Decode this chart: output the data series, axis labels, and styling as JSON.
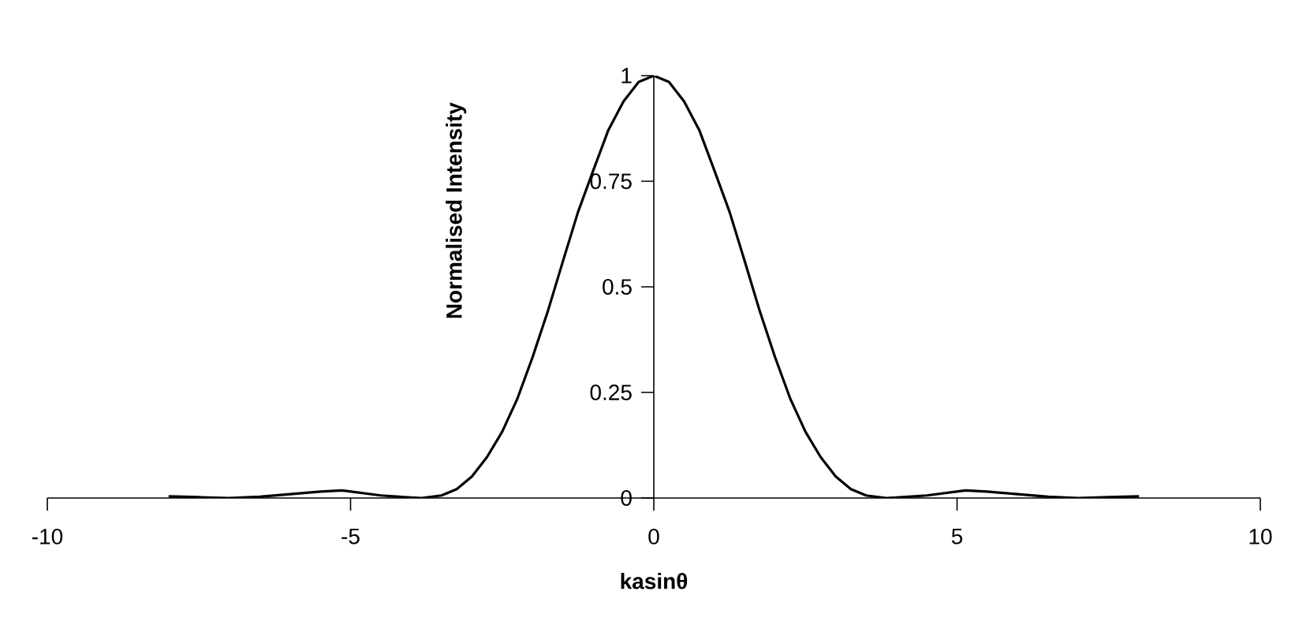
{
  "chart_data": {
    "type": "line",
    "xlabel": "kasinθ",
    "ylabel": "Normalised Intensity",
    "x": [
      -8,
      -7.5,
      -7,
      -6.5,
      -6,
      -5.5,
      -5.14,
      -4.5,
      -4,
      -3.83,
      -3.5,
      -3.25,
      -3,
      -2.75,
      -2.5,
      -2.25,
      -2,
      -1.75,
      -1.5,
      -1.25,
      -1,
      -0.75,
      -0.5,
      -0.25,
      0,
      0.25,
      0.5,
      0.75,
      1,
      1.25,
      1.5,
      1.75,
      2,
      2.25,
      2.5,
      2.75,
      3,
      3.25,
      3.5,
      3.83,
      4,
      4.5,
      5.14,
      5.5,
      6,
      6.5,
      7,
      7.5,
      8
    ],
    "series": [
      {
        "color": "#000000",
        "values": [
          0.004,
          0.002,
          0.0,
          0.003,
          0.009,
          0.015,
          0.018,
          0.006,
          0.001,
          0.0,
          0.006,
          0.021,
          0.051,
          0.097,
          0.157,
          0.235,
          0.333,
          0.441,
          0.56,
          0.677,
          0.775,
          0.871,
          0.939,
          0.985,
          1,
          0.985,
          0.939,
          0.871,
          0.775,
          0.677,
          0.56,
          0.441,
          0.333,
          0.235,
          0.157,
          0.097,
          0.051,
          0.021,
          0.006,
          0.0,
          0.001,
          0.006,
          0.018,
          0.015,
          0.009,
          0.003,
          0.0,
          0.002,
          0.004
        ]
      }
    ],
    "xlim": [
      -10,
      10
    ],
    "xticks": [
      -10,
      -5,
      0,
      5,
      10
    ],
    "ylim": [
      0,
      1
    ],
    "yticks": [
      0,
      0.25,
      0.5,
      0.75,
      1
    ],
    "grid": false,
    "line_style": "solid"
  }
}
